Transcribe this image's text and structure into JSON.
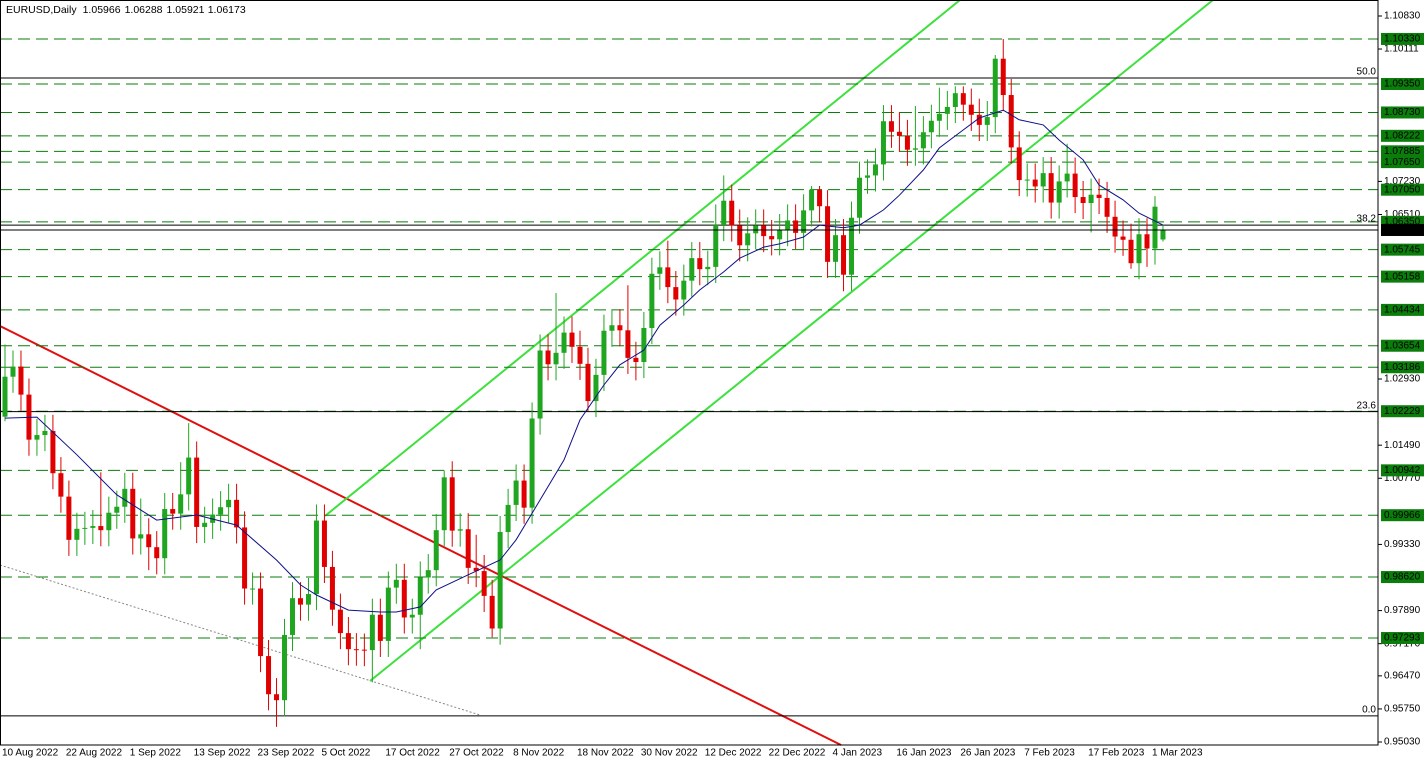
{
  "chart_data": {
    "type": "candlestick",
    "symbol": "EURUSD,Daily",
    "categories": [
      "10 Aug 2022",
      null,
      null,
      null,
      null,
      null,
      null,
      null,
      "22 Aug 2022",
      null,
      null,
      null,
      null,
      null,
      null,
      null,
      "1 Sep 2022",
      null,
      null,
      null,
      null,
      null,
      null,
      null,
      "13 Sep 2022",
      null,
      null,
      null,
      null,
      null,
      null,
      null,
      "23 Sep 2022",
      null,
      null,
      null,
      null,
      null,
      null,
      null,
      "5 Oct 2022",
      null,
      null,
      null,
      null,
      null,
      null,
      null,
      "17 Oct 2022",
      null,
      null,
      null,
      null,
      null,
      null,
      null,
      "27 Oct 2022",
      null,
      null,
      null,
      null,
      null,
      null,
      null,
      "8 Nov 2022",
      null,
      null,
      null,
      null,
      null,
      null,
      null,
      "18 Nov 2022",
      null,
      null,
      null,
      null,
      null,
      null,
      null,
      "30 Nov 2022",
      null,
      null,
      null,
      null,
      null,
      null,
      null,
      "12 Dec 2022",
      null,
      null,
      null,
      null,
      null,
      null,
      null,
      "22 Dec 2022",
      null,
      null,
      null,
      null,
      null,
      null,
      null,
      "4 Jan 2023",
      null,
      null,
      null,
      null,
      null,
      null,
      null,
      "16 Jan 2023",
      null,
      null,
      null,
      null,
      null,
      null,
      null,
      "26 Jan 2023",
      null,
      null,
      null,
      null,
      null,
      null,
      null,
      "7 Feb 2023",
      null,
      null,
      null,
      null,
      null,
      null,
      null,
      "17 Feb 2023",
      null,
      null,
      null,
      null,
      null,
      null,
      null,
      "1 Mar 2023",
      null
    ],
    "open": [
      1.0211,
      1.0298,
      1.032,
      1.0259,
      1.0161,
      1.0171,
      1.018,
      1.0088,
      1.0037,
      0.9943,
      0.9967,
      0.9969,
      0.9973,
      0.9964,
      1.0002,
      1.0015,
      1.0054,
      0.9946,
      0.9955,
      0.9927,
      0.9903,
      1.001,
      1.0,
      1.0042,
      1.0122,
      0.9971,
      0.998,
      0.9998,
      1.0014,
      1.003,
      0.997,
      0.9837,
      0.9837,
      0.969,
      0.9607,
      0.9594,
      0.9736,
      0.9816,
      0.9802,
      0.9825,
      0.9985,
      0.9884,
      0.9791,
      0.974,
      0.9705,
      0.9704,
      0.9703,
      0.978,
      0.9723,
      0.9839,
      0.9856,
      0.9774,
      0.978,
      0.9861,
      0.9877,
      0.9964,
      1.0079,
      0.9963,
      0.9966,
      0.9882,
      0.9875,
      0.9821,
      0.975,
      0.996,
      1.0019,
      1.0072,
      1.0013,
      1.0207,
      1.0355,
      1.0325,
      1.035,
      1.0394,
      1.0363,
      1.0326,
      1.0245,
      1.0302,
      1.0398,
      1.041,
      1.0399,
      1.0339,
      1.033,
      1.0404,
      1.0522,
      1.0536,
      1.0493,
      1.0466,
      1.0507,
      1.0556,
      1.0532,
      1.0537,
      1.0628,
      1.0681,
      1.0627,
      1.0584,
      1.061,
      1.0627,
      1.0604,
      1.0597,
      1.0617,
      1.0638,
      1.0611,
      1.066,
      1.0705,
      1.0669,
      1.0548,
      1.0606,
      1.052,
      1.0644,
      1.0731,
      1.0736,
      1.076,
      1.0854,
      1.0831,
      1.0822,
      1.0792,
      1.0795,
      1.083,
      1.0855,
      1.087,
      1.0885,
      1.0915,
      1.089,
      1.0868,
      1.0846,
      1.0863,
      1.099,
      1.0911,
      1.0797,
      1.0726,
      1.0727,
      1.0712,
      1.0741,
      1.0677,
      1.0723,
      1.074,
      1.0689,
      1.0676,
      1.0694,
      1.0687,
      1.0646,
      1.0603,
      1.0596,
      1.0545,
      1.0608,
      1.0577,
      1.05966
    ],
    "high": [
      1.0368,
      1.0355,
      1.0355,
      1.0294,
      1.0206,
      1.0215,
      1.0215,
      1.0123,
      1.0072,
      1.0002,
      1.0004,
      1.0008,
      1.009,
      1.0037,
      1.005,
      1.0089,
      1.0089,
      1.0033,
      0.999,
      0.9962,
      1.0045,
      1.0045,
      1.0112,
      1.0197,
      1.0157,
      1.0015,
      1.0033,
      1.0049,
      1.0065,
      1.0065,
      1.0005,
      0.9872,
      0.9872,
      0.9725,
      0.9642,
      0.9771,
      0.9851,
      0.9851,
      0.986,
      1.002,
      1.002,
      0.9919,
      0.9826,
      0.9775,
      0.974,
      0.9739,
      0.9815,
      0.9815,
      0.9874,
      0.9891,
      0.9891,
      0.9815,
      0.9896,
      0.9912,
      0.9999,
      1.0094,
      1.0114,
      1.0001,
      1.0001,
      0.9954,
      0.991,
      0.9856,
      0.9995,
      1.0054,
      1.0107,
      1.0107,
      1.0242,
      1.039,
      1.039,
      1.048,
      1.0429,
      1.0429,
      1.0398,
      1.0361,
      1.0337,
      1.0433,
      1.0445,
      1.0445,
      1.0497,
      1.0374,
      1.0439,
      1.0557,
      1.0571,
      1.0594,
      1.0528,
      1.0542,
      1.0591,
      1.0591,
      1.0572,
      1.0673,
      1.0736,
      1.0716,
      1.0662,
      1.0645,
      1.0662,
      1.0662,
      1.0639,
      1.0652,
      1.0673,
      1.0673,
      1.0695,
      1.0713,
      1.0713,
      1.0704,
      1.0641,
      1.0641,
      1.0679,
      1.0766,
      1.0771,
      1.0795,
      1.0889,
      1.0889,
      1.0874,
      1.0857,
      1.0887,
      1.0865,
      1.089,
      1.0927,
      1.092,
      1.093,
      1.093,
      1.0925,
      1.0903,
      1.0898,
      1.0998,
      1.1033,
      1.0946,
      1.0832,
      1.0762,
      1.0762,
      1.0776,
      1.0776,
      1.0758,
      1.0805,
      1.0775,
      1.0724,
      1.0729,
      1.0729,
      1.0722,
      1.0681,
      1.0638,
      1.0631,
      1.0643,
      1.0643,
      1.0691,
      1.06288
    ],
    "low": [
      1.0201,
      1.0263,
      1.0224,
      1.0126,
      1.0126,
      1.0136,
      1.0053,
      1.0002,
      0.9908,
      0.9908,
      0.9932,
      0.9934,
      0.9929,
      0.9929,
      0.9967,
      0.998,
      0.9911,
      0.9911,
      0.9877,
      0.9868,
      0.9868,
      0.9965,
      0.9965,
      1.0007,
      0.9936,
      0.9936,
      0.9945,
      0.9963,
      0.9979,
      0.9935,
      0.9802,
      0.9802,
      0.9655,
      0.9572,
      0.9536,
      0.9559,
      0.9701,
      0.9767,
      0.9767,
      0.979,
      0.9849,
      0.9756,
      0.9705,
      0.967,
      0.9669,
      0.9668,
      0.9633,
      0.9688,
      0.9688,
      0.9804,
      0.9739,
      0.9739,
      0.9705,
      0.9826,
      0.9842,
      0.9929,
      0.9928,
      0.9928,
      0.9847,
      0.984,
      0.9786,
      0.9731,
      0.9715,
      0.9925,
      0.9984,
      0.9978,
      0.9978,
      1.0172,
      1.029,
      1.029,
      1.0315,
      1.0328,
      1.0291,
      1.0223,
      1.021,
      1.0267,
      1.0363,
      1.0364,
      1.0304,
      1.029,
      1.0295,
      1.0369,
      1.0487,
      1.0458,
      1.0431,
      1.0431,
      1.0472,
      1.0497,
      1.0497,
      1.0502,
      1.0593,
      1.0592,
      1.0549,
      1.0549,
      1.0575,
      1.0569,
      1.0562,
      1.0562,
      1.0582,
      1.0576,
      1.0576,
      1.0625,
      1.0634,
      1.0513,
      1.0513,
      1.0484,
      1.0485,
      1.0609,
      1.0696,
      1.0701,
      1.0725,
      1.0796,
      1.0787,
      1.0757,
      1.0757,
      1.076,
      1.0795,
      1.082,
      1.0835,
      1.085,
      1.0855,
      1.0833,
      1.0811,
      1.0811,
      1.0828,
      1.0876,
      1.0762,
      1.0691,
      1.069,
      1.0677,
      1.0677,
      1.0642,
      1.0642,
      1.0688,
      1.0654,
      1.0641,
      1.0612,
      1.0652,
      1.0611,
      1.0568,
      1.0561,
      1.0533,
      1.051,
      1.0537,
      1.0542,
      1.05921
    ],
    "close": [
      1.0298,
      1.032,
      1.0259,
      1.0161,
      1.0171,
      1.018,
      1.0088,
      1.0037,
      0.9943,
      0.9967,
      0.9969,
      0.9973,
      0.9964,
      1.0002,
      1.0015,
      1.0054,
      0.9946,
      0.9955,
      0.9927,
      0.9903,
      1.001,
      1.0,
      1.0042,
      1.0122,
      0.9971,
      0.998,
      0.9998,
      1.0014,
      1.003,
      0.997,
      0.9837,
      0.9837,
      0.969,
      0.9607,
      0.9594,
      0.9736,
      0.9816,
      0.9802,
      0.9825,
      0.9985,
      0.9884,
      0.9791,
      0.974,
      0.9705,
      0.9704,
      0.9703,
      0.978,
      0.9723,
      0.9839,
      0.9856,
      0.9774,
      0.978,
      0.9861,
      0.9877,
      0.9964,
      1.0079,
      0.9963,
      0.9966,
      0.9882,
      0.9875,
      0.9821,
      0.975,
      0.996,
      1.0019,
      1.0072,
      1.0013,
      1.0207,
      1.0355,
      1.0325,
      1.035,
      1.0394,
      1.0363,
      1.0326,
      1.0245,
      1.0302,
      1.0398,
      1.041,
      1.0399,
      1.0339,
      1.033,
      1.0404,
      1.0522,
      1.0536,
      1.0493,
      1.0466,
      1.0507,
      1.0556,
      1.0532,
      1.0537,
      1.0628,
      1.0681,
      1.0627,
      1.0584,
      1.061,
      1.0627,
      1.0604,
      1.0597,
      1.0617,
      1.0638,
      1.0611,
      1.066,
      1.0705,
      1.0669,
      1.0548,
      1.0606,
      1.052,
      1.0644,
      1.0731,
      1.0736,
      1.076,
      1.0854,
      1.0831,
      1.0822,
      1.0792,
      1.0795,
      1.083,
      1.0855,
      1.087,
      1.0885,
      1.0915,
      1.089,
      1.0868,
      1.0846,
      1.0863,
      1.099,
      1.0911,
      1.0797,
      1.0726,
      1.0727,
      1.0712,
      1.0741,
      1.0677,
      1.0723,
      1.074,
      1.0689,
      1.0676,
      1.0694,
      1.0687,
      1.0646,
      1.0603,
      1.0596,
      1.0545,
      1.0608,
      1.0577,
      1.0668,
      1.06173
    ],
    "up_color": "#1fa51f",
    "down_color": "#e00000",
    "ylim": [
      0.94965,
      1.11178
    ],
    "yticks": [
      {
        "value": 1.1083,
        "label": "1.10830"
      },
      {
        "value": 1.10111,
        "label": "1.10111"
      },
      {
        "value": 1.0723,
        "label": "1.07230"
      },
      {
        "value": 1.0651,
        "label": "1.06510"
      },
      {
        "value": 1.0293,
        "label": "1.02930"
      },
      {
        "value": 1.0149,
        "label": "1.01490"
      },
      {
        "value": 1.0077,
        "label": "1.00770"
      },
      {
        "value": 0.9933,
        "label": "0.99330"
      },
      {
        "value": 0.9789,
        "label": "0.97890"
      },
      {
        "value": 0.9717,
        "label": "0.97170"
      },
      {
        "value": 0.9647,
        "label": "0.96470"
      },
      {
        "value": 0.9575,
        "label": "0.95750"
      },
      {
        "value": 0.9503,
        "label": "0.95030"
      }
    ],
    "grid": false,
    "ma": {
      "color": "#10108a",
      "x": [
        0,
        4,
        9,
        14,
        19,
        24,
        29,
        34,
        37,
        39,
        43,
        47,
        49,
        52,
        54,
        58,
        62,
        64,
        67,
        70,
        72,
        75,
        77,
        80,
        82,
        85,
        87,
        90,
        92,
        95,
        97,
        100,
        102,
        105,
        107,
        110,
        112,
        115,
        117,
        120,
        122,
        125,
        127,
        130,
        132,
        135,
        137,
        140,
        142,
        145
      ],
      "values": [
        1.0208,
        1.021,
        1.0128,
        1.0041,
        0.9986,
        0.9997,
        0.9975,
        0.9899,
        0.9845,
        0.9823,
        0.979,
        0.9786,
        0.9786,
        0.9797,
        0.9834,
        0.9867,
        0.9899,
        0.9943,
        1.003,
        1.0117,
        1.0204,
        1.028,
        1.0324,
        1.0356,
        1.041,
        1.0454,
        1.0487,
        1.0526,
        1.0556,
        1.058,
        1.0587,
        1.0602,
        1.0628,
        1.0622,
        1.0628,
        1.0661,
        1.0693,
        1.0748,
        1.0796,
        1.0835,
        1.0861,
        1.0878,
        1.0857,
        1.0846,
        1.0813,
        1.077,
        1.0715,
        1.0683,
        1.0654,
        1.0628
      ]
    },
    "level_color": "#0b7d0b",
    "levels": [
      {
        "value": 1.1033,
        "label": "1.10330"
      },
      {
        "value": 1.0935,
        "label": "1.09350"
      },
      {
        "value": 1.0873,
        "label": "1.08730"
      },
      {
        "value": 1.08222,
        "label": "1.08222"
      },
      {
        "value": 1.07885,
        "label": "1.07885"
      },
      {
        "value": 1.0765,
        "label": "1.07650"
      },
      {
        "value": 1.0705,
        "label": "1.07050"
      },
      {
        "value": 1.0635,
        "label": "1.06350"
      },
      {
        "value": 1.05745,
        "label": "1.05745"
      },
      {
        "value": 1.05158,
        "label": "1.05158"
      },
      {
        "value": 1.04434,
        "label": "1.04434"
      },
      {
        "value": 1.03654,
        "label": "1.03654"
      },
      {
        "value": 1.03186,
        "label": "1.03186"
      },
      {
        "value": 1.02229,
        "label": "1.02229"
      },
      {
        "value": 1.00942,
        "label": "1.00942"
      },
      {
        "value": 0.99966,
        "label": "0.99966"
      },
      {
        "value": 0.9862,
        "label": "0.98620"
      },
      {
        "value": 0.97293,
        "label": "0.97293"
      }
    ],
    "fib": [
      {
        "value": 1.0948,
        "label": "50.0"
      },
      {
        "value": 1.0628,
        "label": "38.2"
      },
      {
        "value": 1.0222,
        "label": "23.6"
      },
      {
        "value": 0.956,
        "label": "0.0"
      }
    ]
  }
}
